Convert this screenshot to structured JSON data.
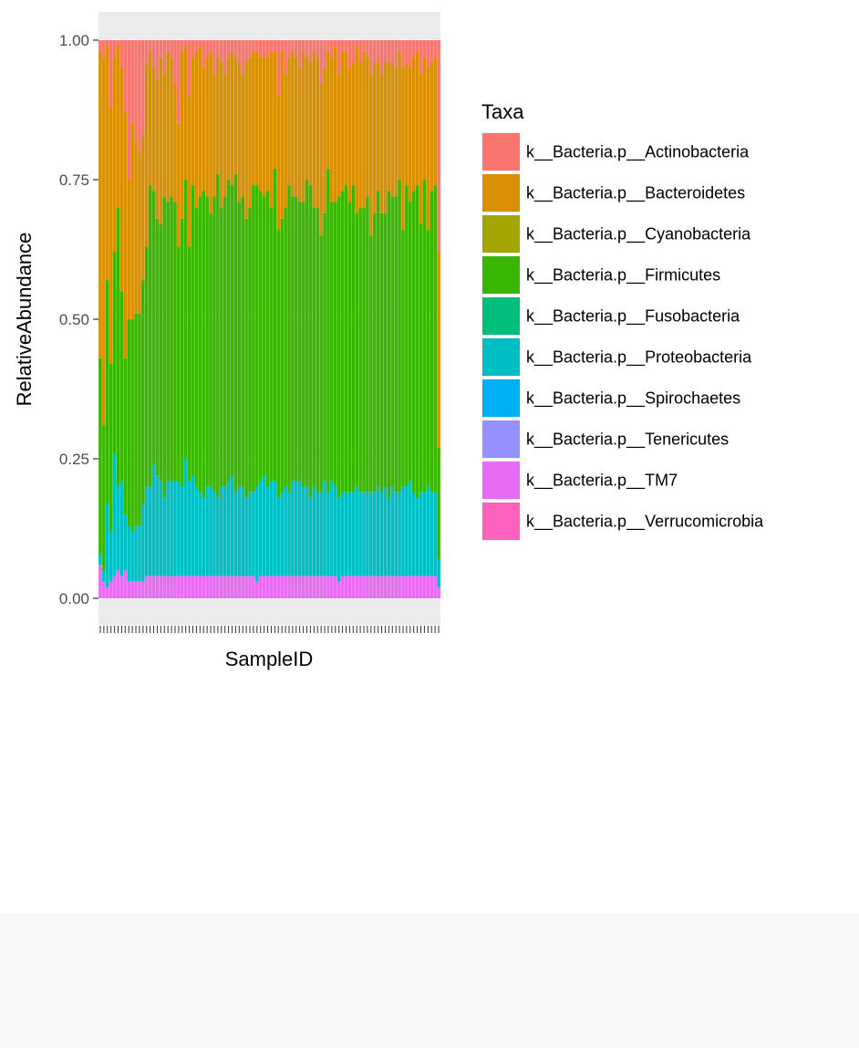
{
  "chart_data": {
    "type": "bar",
    "stacked": true,
    "xlabel": "SampleID",
    "ylabel": "RelativeAbundance",
    "ylim": [
      0,
      1
    ],
    "yticks": [
      "0.00",
      "0.25",
      "0.50",
      "0.75",
      "1.00"
    ],
    "ytick_values": [
      0,
      0.25,
      0.5,
      0.75,
      1.0
    ],
    "sample_count": 96,
    "legend_title": "Taxa",
    "legend_position": "right",
    "series": [
      {
        "name": "k__Bacteria.p__Actinobacteria",
        "color": "#F8766D"
      },
      {
        "name": "k__Bacteria.p__Bacteroidetes",
        "color": "#D89000"
      },
      {
        "name": "k__Bacteria.p__Cyanobacteria",
        "color": "#A3A500"
      },
      {
        "name": "k__Bacteria.p__Firmicutes",
        "color": "#39B600"
      },
      {
        "name": "k__Bacteria.p__Fusobacteria",
        "color": "#00BF7D"
      },
      {
        "name": "k__Bacteria.p__Proteobacteria",
        "color": "#00BFC4"
      },
      {
        "name": "k__Bacteria.p__Spirochaetes",
        "color": "#00B0F6"
      },
      {
        "name": "k__Bacteria.p__Tenericutes",
        "color": "#9590FF"
      },
      {
        "name": "k__Bacteria.p__TM7",
        "color": "#E76BF3"
      },
      {
        "name": "k__Bacteria.p__Verrucomicrobia",
        "color": "#FF62BC"
      }
    ],
    "sample_profile": {
      "Actinobacteria": [
        0.02,
        0.03,
        0.01,
        0.12,
        0.03,
        0.01,
        0.05,
        0.13,
        0.25,
        0.15,
        0.18,
        0.2,
        0.17,
        0.04,
        0.02,
        0.05,
        0.07,
        0.03,
        0.06,
        0.02,
        0.03,
        0.08,
        0.15,
        0.02,
        0.01,
        0.1,
        0.03,
        0.02,
        0.01,
        0.05,
        0.03,
        0.02,
        0.06,
        0.03,
        0.04,
        0.06,
        0.03,
        0.02,
        0.03,
        0.04,
        0.06,
        0.04,
        0.03,
        0.02,
        0.02,
        0.03,
        0.03,
        0.03,
        0.02,
        0.02,
        0.1,
        0.02,
        0.06,
        0.03,
        0.02,
        0.03,
        0.05,
        0.02,
        0.03,
        0.04,
        0.02,
        0.03,
        0.08,
        0.05,
        0.02,
        0.03,
        0.01,
        0.06,
        0.02,
        0.02,
        0.05,
        0.04,
        0.01,
        0.04,
        0.02,
        0.03,
        0.06,
        0.04,
        0.04,
        0.06,
        0.04,
        0.04,
        0.04,
        0.05,
        0.02,
        0.05,
        0.04,
        0.05,
        0.03,
        0.02,
        0.06,
        0.03,
        0.05,
        0.04,
        0.03,
        0.38
      ],
      "Bacteroidetes": [
        0.55,
        0.66,
        0.42,
        0.46,
        0.35,
        0.29,
        0.4,
        0.44,
        0.25,
        0.35,
        0.31,
        0.29,
        0.26,
        0.33,
        0.24,
        0.22,
        0.25,
        0.3,
        0.22,
        0.27,
        0.25,
        0.21,
        0.22,
        0.3,
        0.24,
        0.27,
        0.23,
        0.28,
        0.27,
        0.22,
        0.25,
        0.29,
        0.22,
        0.21,
        0.26,
        0.22,
        0.22,
        0.24,
        0.21,
        0.25,
        0.22,
        0.28,
        0.27,
        0.24,
        0.24,
        0.24,
        0.25,
        0.24,
        0.28,
        0.21,
        0.24,
        0.3,
        0.24,
        0.23,
        0.26,
        0.25,
        0.24,
        0.27,
        0.22,
        0.22,
        0.28,
        0.27,
        0.27,
        0.26,
        0.21,
        0.26,
        0.28,
        0.22,
        0.25,
        0.24,
        0.24,
        0.22,
        0.3,
        0.26,
        0.28,
        0.25,
        0.29,
        0.27,
        0.23,
        0.25,
        0.27,
        0.23,
        0.24,
        0.23,
        0.23,
        0.29,
        0.22,
        0.24,
        0.24,
        0.24,
        0.27,
        0.22,
        0.29,
        0.23,
        0.23,
        0.35
      ],
      "Firmicutes": [
        0.35,
        0.26,
        0.4,
        0.3,
        0.36,
        0.5,
        0.34,
        0.28,
        0.37,
        0.38,
        0.38,
        0.38,
        0.4,
        0.43,
        0.54,
        0.49,
        0.46,
        0.46,
        0.54,
        0.5,
        0.51,
        0.5,
        0.42,
        0.48,
        0.5,
        0.42,
        0.52,
        0.5,
        0.53,
        0.55,
        0.52,
        0.49,
        0.53,
        0.58,
        0.5,
        0.52,
        0.54,
        0.52,
        0.57,
        0.51,
        0.52,
        0.5,
        0.51,
        0.55,
        0.54,
        0.52,
        0.5,
        0.53,
        0.49,
        0.56,
        0.48,
        0.49,
        0.5,
        0.55,
        0.51,
        0.51,
        0.5,
        0.51,
        0.55,
        0.56,
        0.5,
        0.51,
        0.46,
        0.48,
        0.58,
        0.5,
        0.51,
        0.54,
        0.54,
        0.55,
        0.52,
        0.55,
        0.49,
        0.51,
        0.51,
        0.53,
        0.46,
        0.5,
        0.53,
        0.5,
        0.49,
        0.55,
        0.52,
        0.53,
        0.56,
        0.46,
        0.54,
        0.5,
        0.54,
        0.56,
        0.48,
        0.56,
        0.46,
        0.54,
        0.55,
        0.2
      ],
      "Proteobacteria": [
        0.02,
        0.02,
        0.15,
        0.09,
        0.22,
        0.15,
        0.17,
        0.1,
        0.1,
        0.09,
        0.1,
        0.1,
        0.14,
        0.16,
        0.16,
        0.2,
        0.18,
        0.17,
        0.14,
        0.17,
        0.17,
        0.17,
        0.17,
        0.16,
        0.21,
        0.17,
        0.18,
        0.16,
        0.15,
        0.14,
        0.16,
        0.16,
        0.15,
        0.14,
        0.16,
        0.16,
        0.17,
        0.18,
        0.15,
        0.16,
        0.16,
        0.14,
        0.15,
        0.15,
        0.17,
        0.17,
        0.18,
        0.16,
        0.17,
        0.17,
        0.14,
        0.15,
        0.16,
        0.15,
        0.17,
        0.17,
        0.17,
        0.16,
        0.16,
        0.14,
        0.16,
        0.15,
        0.15,
        0.17,
        0.15,
        0.17,
        0.16,
        0.15,
        0.15,
        0.15,
        0.15,
        0.15,
        0.16,
        0.15,
        0.15,
        0.15,
        0.15,
        0.15,
        0.16,
        0.15,
        0.16,
        0.14,
        0.16,
        0.15,
        0.15,
        0.16,
        0.16,
        0.17,
        0.15,
        0.14,
        0.15,
        0.15,
        0.16,
        0.15,
        0.15,
        0.05
      ],
      "Other": [
        0.06,
        0.03,
        0.02,
        0.03,
        0.04,
        0.05,
        0.04,
        0.05,
        0.03,
        0.03,
        0.03,
        0.03,
        0.03,
        0.04,
        0.04,
        0.04,
        0.04,
        0.04,
        0.04,
        0.04,
        0.04,
        0.04,
        0.04,
        0.04,
        0.04,
        0.04,
        0.04,
        0.04,
        0.04,
        0.04,
        0.04,
        0.04,
        0.04,
        0.04,
        0.04,
        0.04,
        0.04,
        0.04,
        0.04,
        0.04,
        0.04,
        0.04,
        0.04,
        0.04,
        0.03,
        0.04,
        0.04,
        0.04,
        0.04,
        0.04,
        0.04,
        0.04,
        0.04,
        0.04,
        0.04,
        0.04,
        0.04,
        0.04,
        0.04,
        0.04,
        0.04,
        0.04,
        0.04,
        0.04,
        0.04,
        0.04,
        0.04,
        0.03,
        0.04,
        0.04,
        0.04,
        0.04,
        0.04,
        0.04,
        0.04,
        0.04,
        0.04,
        0.04,
        0.04,
        0.04,
        0.04,
        0.04,
        0.04,
        0.04,
        0.04,
        0.04,
        0.04,
        0.04,
        0.04,
        0.04,
        0.04,
        0.04,
        0.04,
        0.04,
        0.04,
        0.02
      ]
    }
  }
}
